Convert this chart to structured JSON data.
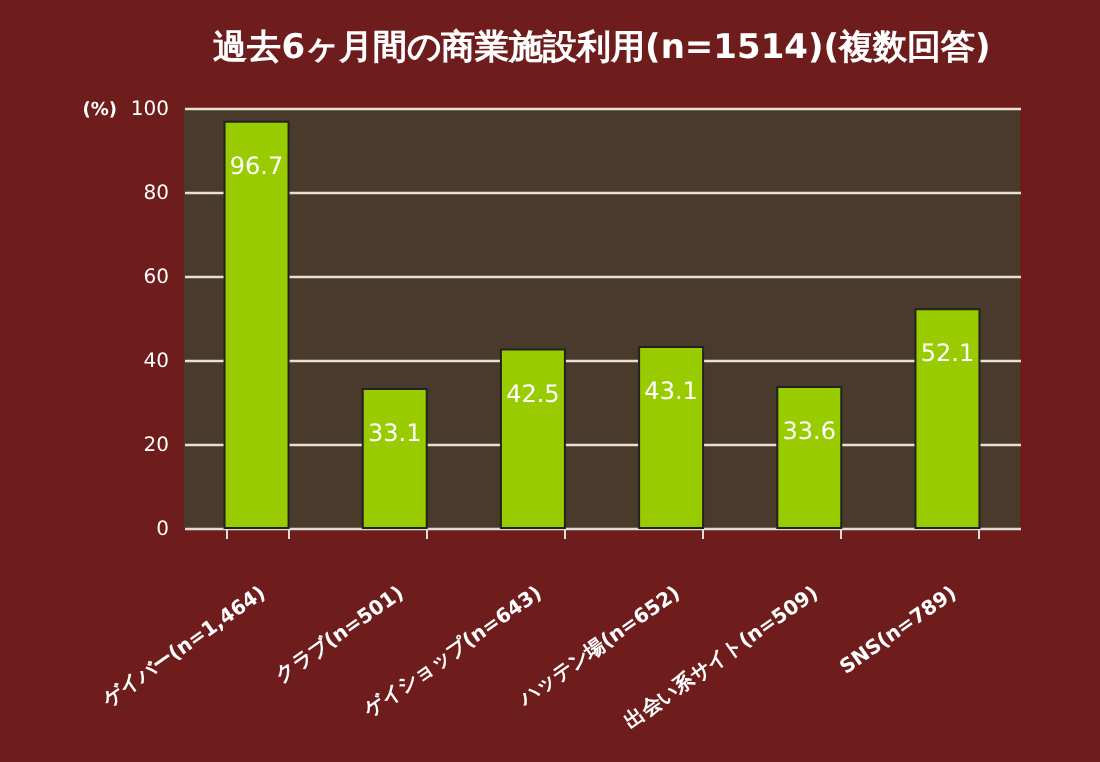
{
  "chart_data": {
    "type": "bar",
    "title": "過去6ヶ月間の商業施設利用(n=1514)(複数回答)",
    "ylabel": "(%)",
    "categories": [
      "ゲイバー(n=1,464)",
      "クラブ(n=501)",
      "ゲイショップ(n=643)",
      "ハッテン場(n=652)",
      "出会い系サイト(n=509)",
      "SNS(n=789)"
    ],
    "values": [
      96.7,
      33.1,
      42.5,
      43.1,
      33.6,
      52.1
    ],
    "color": "#99cc00",
    "ylim": [
      0,
      100
    ],
    "yticks": [
      0,
      20,
      40,
      60,
      80,
      100
    ],
    "grid": "y",
    "data_labels": true
  }
}
